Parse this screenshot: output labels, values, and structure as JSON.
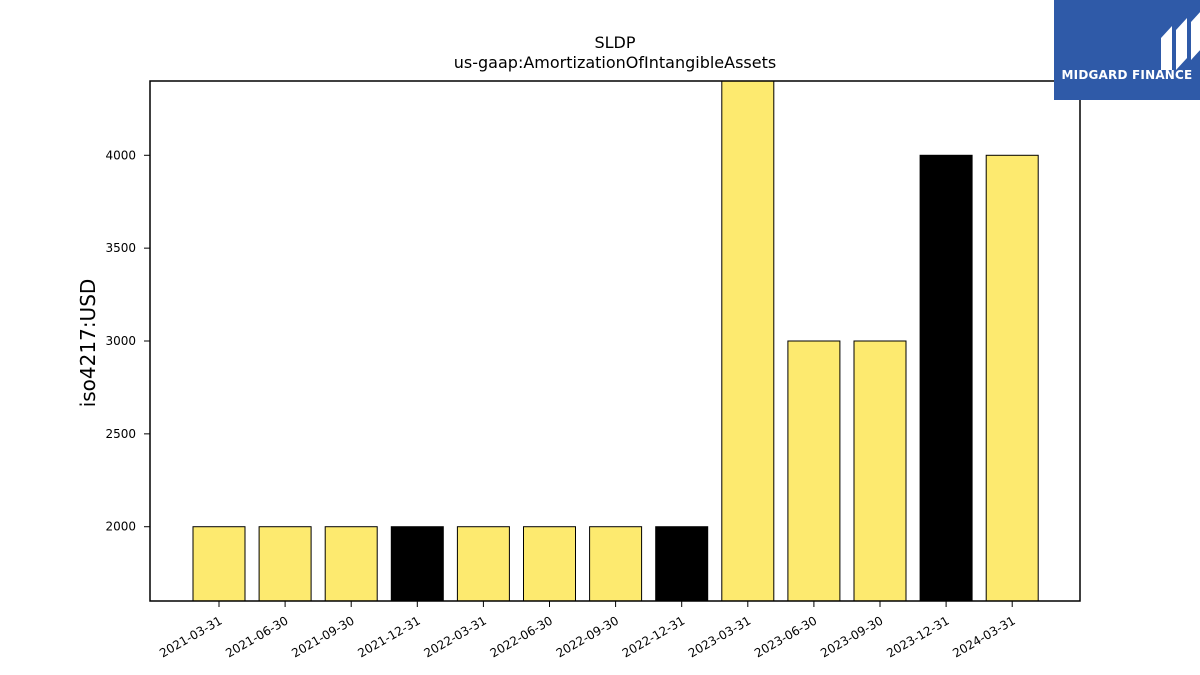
{
  "brand": {
    "name": "MIDGARD FINANCE",
    "logo_icon": "midgard-m-logo-icon",
    "color": "#2f5aa8"
  },
  "chart_data": {
    "type": "bar",
    "title": "SLDP",
    "subtitle": "us-gaap:AmortizationOfIntangibleAssets",
    "xlabel": "",
    "ylabel": "iso4217:USD",
    "categories": [
      "2021-03-31",
      "2021-06-30",
      "2021-09-30",
      "2021-12-31",
      "2022-03-31",
      "2022-06-30",
      "2022-09-30",
      "2022-12-31",
      "2023-03-31",
      "2023-06-30",
      "2023-09-30",
      "2023-12-31",
      "2024-03-31"
    ],
    "values": [
      2000,
      2000,
      2000,
      2000,
      2000,
      2000,
      2000,
      2000,
      4400,
      3000,
      3000,
      4000,
      4000
    ],
    "bar_colors": [
      "#fdea6f",
      "#fdea6f",
      "#fdea6f",
      "#000000",
      "#fdea6f",
      "#fdea6f",
      "#fdea6f",
      "#000000",
      "#fdea6f",
      "#fdea6f",
      "#fdea6f",
      "#000000",
      "#fdea6f"
    ],
    "ylim": [
      1600,
      4400
    ],
    "yticks": [
      2000,
      2500,
      3000,
      3500,
      4000
    ],
    "grid": false,
    "legend": "none"
  }
}
